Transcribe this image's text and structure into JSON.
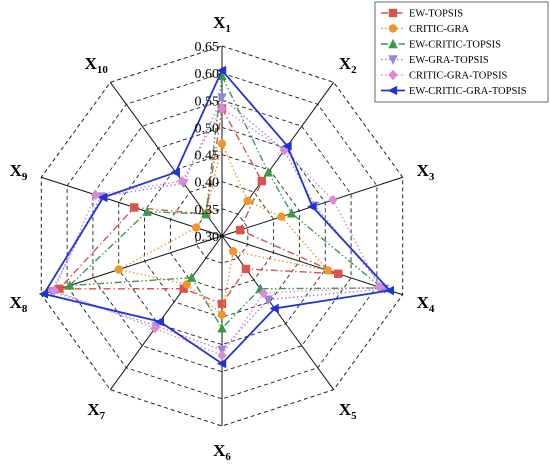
{
  "chart_data": {
    "type": "radar",
    "axes": [
      {
        "main": "X",
        "sub": "1"
      },
      {
        "main": "X",
        "sub": "2"
      },
      {
        "main": "X",
        "sub": "3"
      },
      {
        "main": "X",
        "sub": "4"
      },
      {
        "main": "X",
        "sub": "5"
      },
      {
        "main": "X",
        "sub": "6"
      },
      {
        "main": "X",
        "sub": "7"
      },
      {
        "main": "X",
        "sub": "8"
      },
      {
        "main": "X",
        "sub": "9"
      },
      {
        "main": "X",
        "sub": "10"
      }
    ],
    "rlim": [
      0.3,
      0.65
    ],
    "ticks": [
      "0.30",
      "0.35",
      "0.40",
      "0.45",
      "0.50",
      "0.55",
      "0.60",
      "0.65"
    ],
    "grid": true,
    "legend_position": "top-right",
    "series": [
      {
        "name": "EW-TOPSIS",
        "color": "#d9534f",
        "marker": "square",
        "dash": "dash-dot",
        "values": [
          0.535,
          0.425,
          0.335,
          0.525,
          0.375,
          0.425,
          0.42,
          0.615,
          0.47,
          0.35
        ]
      },
      {
        "name": "CRITIC-GRA",
        "color": "#f0962b",
        "marker": "circle",
        "dash": "dot",
        "values": [
          0.47,
          0.38,
          0.415,
          0.505,
          0.335,
          0.445,
          0.41,
          0.5,
          0.35,
          0.35
        ]
      },
      {
        "name": "EW-CRITIC-TOPSIS",
        "color": "#3a9a4c",
        "marker": "triangle-up",
        "dash": "dash-dot-dot",
        "values": [
          0.595,
          0.445,
          0.435,
          0.61,
          0.42,
          0.47,
          0.395,
          0.595,
          0.445,
          0.35
        ]
      },
      {
        "name": "EW-GRA-TOPSIS",
        "color": "#9b83e0",
        "marker": "triangle-down",
        "dash": "dot",
        "values": [
          0.555,
          0.495,
          0.48,
          0.615,
          0.445,
          0.51,
          0.505,
          0.63,
          0.535,
          0.42
        ]
      },
      {
        "name": "CRITIC-GRA-TOPSIS",
        "color": "#d98bd5",
        "marker": "diamond",
        "dash": "dot",
        "values": [
          0.535,
          0.495,
          0.515,
          0.605,
          0.43,
          0.52,
          0.51,
          0.625,
          0.545,
          0.425
        ]
      },
      {
        "name": "EW-CRITIC-GRA-TOPSIS",
        "color": "#2233d6",
        "marker": "triangle-left",
        "dash": "solid",
        "values": [
          0.605,
          0.505,
          0.475,
          0.625,
          0.465,
          0.535,
          0.495,
          0.645,
          0.53,
          0.445
        ]
      }
    ]
  }
}
